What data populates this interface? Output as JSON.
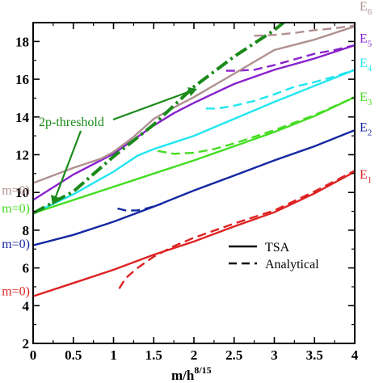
{
  "chart_data": {
    "type": "line",
    "xlabel_base": "m/h",
    "xlabel_exp": "8/15",
    "xlim": [
      0,
      4
    ],
    "ylim": [
      2,
      19
    ],
    "x_ticks": [
      {
        "v": 0,
        "label": "0"
      },
      {
        "v": 0.5,
        "label": "0.5"
      },
      {
        "v": 1,
        "label": "1"
      },
      {
        "v": 1.5,
        "label": "1.5"
      },
      {
        "v": 2,
        "label": "2"
      },
      {
        "v": 2.5,
        "label": "2.5"
      },
      {
        "v": 3,
        "label": "3"
      },
      {
        "v": 3.5,
        "label": "3.5"
      },
      {
        "v": 4,
        "label": "4"
      }
    ],
    "y_ticks": [
      {
        "v": 2,
        "label": "2"
      },
      {
        "v": 4,
        "label": "4"
      },
      {
        "v": 6,
        "label": "6"
      },
      {
        "v": 8,
        "label": "8"
      },
      {
        "v": 10,
        "label": "10"
      },
      {
        "v": 12,
        "label": "12"
      },
      {
        "v": 14,
        "label": "14"
      },
      {
        "v": 16,
        "label": "16"
      },
      {
        "v": 18,
        "label": "18"
      }
    ],
    "legend": {
      "placement": "bottom-right",
      "items": [
        {
          "label": "TSA",
          "style": "solid"
        },
        {
          "label": "Analytical",
          "style": "dashed"
        }
      ]
    },
    "annotation": {
      "text": "2p-threshold"
    },
    "levels": [
      {
        "base": "E",
        "sub": "1",
        "color": "#dd2222",
        "label_y": 11.0,
        "side_label": "m=0)",
        "side_y": 4.8,
        "tsa": {
          "x": [
            0,
            0.5,
            1,
            1.5,
            2,
            2.5,
            3,
            3.5,
            4
          ],
          "y": [
            4.5,
            5.2,
            5.9,
            6.7,
            7.4,
            8.2,
            8.95,
            9.95,
            11.1
          ]
        },
        "analytical": {
          "x": [
            1.07,
            1.15,
            1.3,
            1.5,
            1.75,
            2.0,
            2.5,
            3,
            3.5,
            4
          ],
          "y": [
            4.9,
            5.45,
            6.0,
            6.6,
            7.15,
            7.6,
            8.35,
            9.05,
            10.05,
            11.15
          ]
        }
      },
      {
        "base": "E",
        "sub": "2",
        "color": "#1428a0",
        "label_y": 13.5,
        "side_label": "m=0)",
        "side_y": 7.3,
        "tsa": {
          "x": [
            0,
            0.5,
            1,
            1.5,
            2,
            2.5,
            3,
            3.5,
            4
          ],
          "y": [
            7.2,
            7.75,
            8.45,
            9.25,
            10.1,
            10.9,
            11.7,
            12.45,
            13.3
          ]
        },
        "analytical": {
          "x": [
            1.05,
            1.15,
            1.3,
            1.45,
            1.6
          ],
          "y": [
            9.15,
            9.05,
            9.05,
            9.2,
            9.4
          ]
        }
      },
      {
        "base": "E",
        "sub": "3",
        "color": "#44dd22",
        "label_y": 15.1,
        "side_label": "m=0)",
        "side_y": 9.2,
        "tsa": {
          "x": [
            0,
            0.5,
            1,
            1.5,
            2,
            2.5,
            3,
            3.5,
            4
          ],
          "y": [
            8.9,
            9.6,
            10.3,
            11.0,
            11.7,
            12.45,
            13.2,
            14.05,
            15.05
          ]
        },
        "analytical": {
          "x": [
            1.55,
            1.75,
            2.0,
            2.25,
            2.5,
            2.75,
            3.0,
            3.5,
            4
          ],
          "y": [
            12.2,
            12.05,
            12.1,
            12.3,
            12.6,
            12.95,
            13.3,
            14.1,
            15.05
          ]
        }
      },
      {
        "base": "E",
        "sub": "4",
        "color": "#22e6f0",
        "label_y": 16.9,
        "side_label": null,
        "side_y": null,
        "tsa": {
          "x": [
            0,
            0.5,
            1,
            1.3,
            1.5,
            1.75,
            2,
            2.5,
            3,
            3.5,
            4
          ],
          "y": [
            8.9,
            9.9,
            11.1,
            11.95,
            12.3,
            12.65,
            13.0,
            13.9,
            14.8,
            15.65,
            16.5
          ]
        },
        "analytical": {
          "x": [
            2.15,
            2.3,
            2.5,
            2.75,
            3.0,
            3.25,
            3.5,
            3.75,
            4
          ],
          "y": [
            14.45,
            14.45,
            14.6,
            14.85,
            15.2,
            15.6,
            15.85,
            16.15,
            16.5
          ]
        }
      },
      {
        "base": "E",
        "sub": "5",
        "color": "#8822cc",
        "label_y": 18.2,
        "side_label": null,
        "side_y": null,
        "tsa": {
          "x": [
            0,
            0.5,
            1,
            1.5,
            1.75,
            2,
            2.5,
            3,
            3.5,
            4
          ],
          "y": [
            9.6,
            10.95,
            12.05,
            13.55,
            14.2,
            14.75,
            15.75,
            16.5,
            17.1,
            17.8
          ]
        },
        "analytical": {
          "x": [
            2.4,
            2.5,
            2.75,
            3.0,
            3.25,
            3.5,
            3.75,
            4
          ],
          "y": [
            16.45,
            16.45,
            16.5,
            16.75,
            17.05,
            17.35,
            17.55,
            17.8
          ]
        }
      },
      {
        "base": "E",
        "sub": "6",
        "color": "#b09090",
        "label_y": 19.9,
        "side_label": "m=0)",
        "side_y": 10.15,
        "tsa": {
          "x": [
            0,
            0.5,
            0.85,
            1,
            1.25,
            1.5,
            1.75,
            2,
            2.5,
            3,
            3.5,
            4
          ],
          "y": [
            10.5,
            11.3,
            11.8,
            12.15,
            12.95,
            13.9,
            14.5,
            15.05,
            16.3,
            17.55,
            18.1,
            18.8
          ]
        },
        "analytical": {
          "x": [
            2.75,
            3.0,
            3.25,
            3.5,
            3.75,
            4
          ],
          "y": [
            18.3,
            18.35,
            18.45,
            18.6,
            18.7,
            18.85
          ]
        }
      }
    ],
    "threshold": {
      "color": "#1a8a1a",
      "x": [
        0,
        0.5,
        1,
        1.5,
        2,
        2.5,
        3,
        3.2
      ],
      "y": [
        8.9,
        10.05,
        11.9,
        13.6,
        15.6,
        17.2,
        18.6,
        19.3
      ]
    }
  }
}
